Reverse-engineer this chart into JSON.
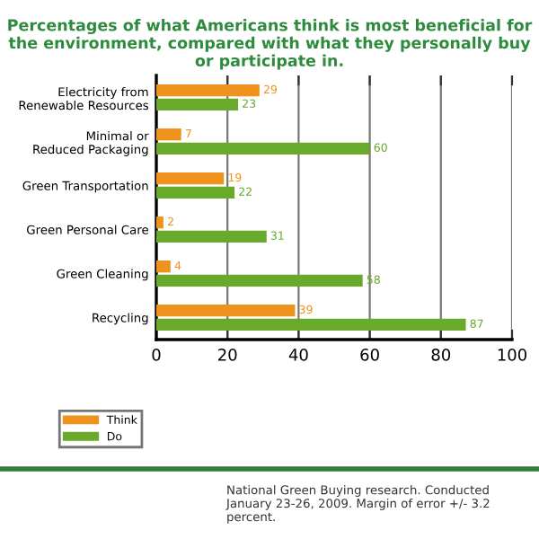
{
  "chart_data": {
    "type": "bar",
    "orientation": "horizontal",
    "title": "Percentages of what Americans think is most beneficial for the environment, compared with what they personally buy or participate in.",
    "categories": [
      "Electricity from\nRenewable Resources",
      "Minimal or\nReduced Packaging",
      "Green Transportation",
      "Green Personal Care",
      "Green Cleaning",
      "Recycling"
    ],
    "series": [
      {
        "name": "Think",
        "color": "#f0921e",
        "values": [
          29,
          7,
          19,
          2,
          4,
          39
        ]
      },
      {
        "name": "Do",
        "color": "#6aaa2a",
        "values": [
          23,
          60,
          22,
          31,
          58,
          87
        ]
      }
    ],
    "xlim": [
      0,
      100
    ],
    "xticks": [
      0,
      20,
      40,
      60,
      80,
      100
    ],
    "grid": "x",
    "legend": "bottom left",
    "data_labels": true,
    "annotations": [
      "National Green Buying research. Conducted January 23-26, 2009. Margin of error +/- 3.2 percent."
    ]
  }
}
